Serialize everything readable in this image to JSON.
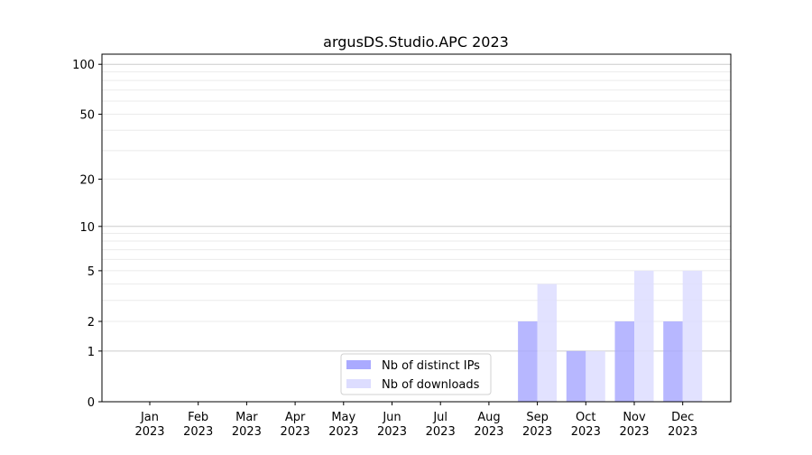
{
  "chart_data": {
    "type": "bar",
    "title": "argusDS.Studio.APC 2023",
    "xlabel": "",
    "ylabel": "",
    "yscale": "symlog",
    "ylim": [
      0,
      115
    ],
    "yticks": [
      0,
      1,
      2,
      5,
      10,
      20,
      50,
      100
    ],
    "grid": true,
    "legend_position": "lower-center",
    "categories": [
      "Jan\n2023",
      "Feb\n2023",
      "Mar\n2023",
      "Apr\n2023",
      "May\n2023",
      "Jun\n2023",
      "Jul\n2023",
      "Aug\n2023",
      "Sep\n2023",
      "Oct\n2023",
      "Nov\n2023",
      "Dec\n2023"
    ],
    "series": [
      {
        "name": "Nb of distinct IPs",
        "color": "#aaaaff",
        "values": [
          0,
          0,
          0,
          0,
          0,
          0,
          0,
          0,
          2,
          1,
          2,
          2
        ]
      },
      {
        "name": "Nb of downloads",
        "color": "#ddddff",
        "values": [
          0,
          0,
          0,
          0,
          0,
          0,
          0,
          0,
          4,
          1,
          5,
          5
        ]
      }
    ]
  }
}
